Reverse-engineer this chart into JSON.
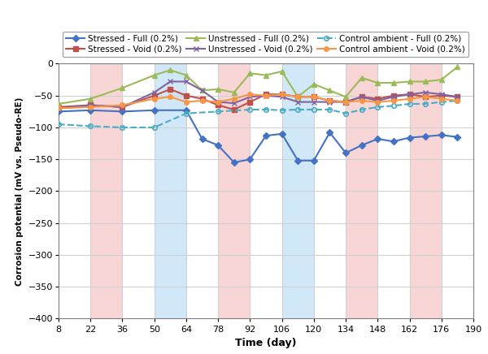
{
  "title": "",
  "xlabel": "Time (day)",
  "ylabel": "Corrosion potential (mV vs. Pseudo-RE)",
  "xlim": [
    8,
    190
  ],
  "ylim": [
    -400,
    0
  ],
  "xticks": [
    8,
    22,
    36,
    50,
    64,
    78,
    92,
    106,
    120,
    134,
    148,
    162,
    176,
    190
  ],
  "yticks": [
    0,
    -50,
    -100,
    -150,
    -200,
    -250,
    -300,
    -350,
    -400
  ],
  "background_color": "#ffffff",
  "grid_color": "#d0d0d0",
  "bg_columns": [
    {
      "xmin": 22,
      "xmax": 36,
      "color": "#f5c0c0",
      "alpha": 0.65
    },
    {
      "xmin": 50,
      "xmax": 64,
      "color": "#b8dcf5",
      "alpha": 0.65
    },
    {
      "xmin": 78,
      "xmax": 92,
      "color": "#f5c0c0",
      "alpha": 0.65
    },
    {
      "xmin": 106,
      "xmax": 120,
      "color": "#b8dcf5",
      "alpha": 0.65
    },
    {
      "xmin": 134,
      "xmax": 148,
      "color": "#f5c0c0",
      "alpha": 0.65
    },
    {
      "xmin": 162,
      "xmax": 176,
      "color": "#f5c0c0",
      "alpha": 0.65
    }
  ],
  "series": [
    {
      "label": "Stressed - Full (0.2%)",
      "color": "#4472C4",
      "marker": "D",
      "markersize": 4,
      "linestyle": "-",
      "linewidth": 1.5,
      "x": [
        8,
        22,
        36,
        50,
        64,
        71,
        78,
        85,
        92,
        99,
        106,
        113,
        120,
        127,
        134,
        141,
        148,
        155,
        162,
        169,
        176,
        183
      ],
      "y": [
        -75,
        -73,
        -75,
        -73,
        -73,
        -118,
        -128,
        -155,
        -150,
        -113,
        -110,
        -152,
        -152,
        -108,
        -140,
        -128,
        -118,
        -122,
        -116,
        -114,
        -112,
        -115
      ]
    },
    {
      "label": "Stressed - Void (0.2%)",
      "color": "#C0504D",
      "marker": "s",
      "markersize": 4,
      "linestyle": "-",
      "linewidth": 1.5,
      "x": [
        8,
        22,
        36,
        50,
        57,
        64,
        71,
        78,
        85,
        92,
        99,
        106,
        113,
        120,
        127,
        134,
        141,
        148,
        155,
        162,
        169,
        176,
        183
      ],
      "y": [
        -68,
        -65,
        -68,
        -50,
        -40,
        -50,
        -55,
        -65,
        -72,
        -60,
        -48,
        -48,
        -52,
        -52,
        -58,
        -60,
        -52,
        -55,
        -50,
        -48,
        -52,
        -50,
        -52
      ]
    },
    {
      "label": "Unstressed - Full (0.2%)",
      "color": "#9BBB59",
      "marker": "^",
      "markersize": 5,
      "linestyle": "-",
      "linewidth": 1.5,
      "x": [
        8,
        22,
        36,
        50,
        57,
        64,
        71,
        78,
        85,
        92,
        99,
        106,
        113,
        120,
        127,
        134,
        141,
        148,
        155,
        162,
        169,
        176,
        183
      ],
      "y": [
        -63,
        -55,
        -38,
        -18,
        -10,
        -18,
        -42,
        -40,
        -45,
        -15,
        -18,
        -12,
        -52,
        -32,
        -42,
        -52,
        -22,
        -30,
        -30,
        -28,
        -28,
        -25,
        -5
      ]
    },
    {
      "label": "Unstressed - Void (0.2%)",
      "color": "#8064A2",
      "marker": "x",
      "markersize": 5,
      "linestyle": "-",
      "linewidth": 1.5,
      "x": [
        8,
        22,
        36,
        50,
        57,
        64,
        71,
        78,
        85,
        92,
        99,
        106,
        113,
        120,
        127,
        134,
        141,
        148,
        155,
        162,
        169,
        176,
        183
      ],
      "y": [
        -70,
        -65,
        -68,
        -45,
        -28,
        -28,
        -42,
        -60,
        -62,
        -52,
        -50,
        -52,
        -60,
        -60,
        -60,
        -60,
        -52,
        -58,
        -52,
        -48,
        -45,
        -48,
        -52
      ]
    },
    {
      "label": "Control ambient - Full (0.2%)",
      "color": "#4BACC6",
      "marker": "o",
      "markersize": 4,
      "linestyle": "--",
      "linewidth": 1.5,
      "markerfacecolor": "none",
      "x": [
        8,
        22,
        36,
        50,
        64,
        78,
        92,
        99,
        106,
        113,
        120,
        127,
        134,
        141,
        148,
        155,
        162,
        169,
        176,
        183
      ],
      "y": [
        -95,
        -98,
        -100,
        -100,
        -78,
        -75,
        -72,
        -72,
        -73,
        -72,
        -72,
        -72,
        -78,
        -72,
        -68,
        -66,
        -63,
        -63,
        -60,
        -58
      ]
    },
    {
      "label": "Control ambient - Void (0.2%)",
      "color": "#F79646",
      "marker": "o",
      "markersize": 4,
      "linestyle": "-",
      "linewidth": 1.5,
      "x": [
        8,
        22,
        36,
        50,
        57,
        64,
        71,
        78,
        85,
        92,
        99,
        106,
        113,
        120,
        127,
        134,
        141,
        148,
        155,
        162,
        169,
        176,
        183
      ],
      "y": [
        -70,
        -68,
        -65,
        -55,
        -52,
        -60,
        -58,
        -60,
        -55,
        -48,
        -50,
        -48,
        -52,
        -52,
        -58,
        -60,
        -58,
        -60,
        -58,
        -55,
        -52,
        -55,
        -58
      ]
    }
  ],
  "legend_order": [
    0,
    1,
    2,
    3,
    4,
    5
  ],
  "legend_ncol": 3,
  "legend_fontsize": 7.5
}
